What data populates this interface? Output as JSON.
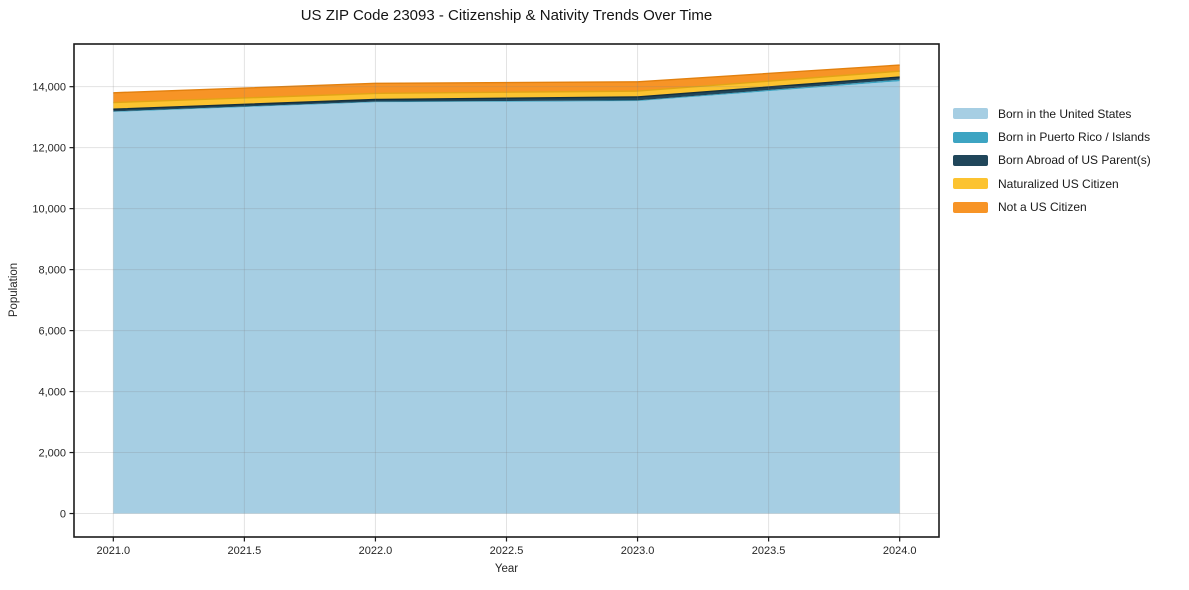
{
  "figure": {
    "background": "#ffffff"
  },
  "chart_data": {
    "type": "area",
    "stacked": true,
    "title": "US ZIP Code 23093 - Citizenship & Nativity Trends Over Time",
    "xlabel": "Year",
    "ylabel": "Population",
    "x": [
      2021,
      2022,
      2023,
      2024
    ],
    "series": [
      {
        "name": "Born in the United States",
        "color": "#a6cee3",
        "values": [
          13170,
          13490,
          13525,
          14180
        ]
      },
      {
        "name": "Born in Puerto Rico / Islands",
        "color": "#3da4c2",
        "values": [
          20,
          20,
          25,
          50
        ]
      },
      {
        "name": "Born Abroad of US Parent(s)",
        "color": "#20465a",
        "edge": "#152f3d",
        "values": [
          70,
          70,
          115,
          85
        ]
      },
      {
        "name": "Naturalized US Citizen",
        "color": "#fcc330",
        "edge": "#e2a416",
        "values": [
          220,
          200,
          190,
          195
        ]
      },
      {
        "name": "Not a US Citizen",
        "color": "#f79426",
        "edge": "#e2800e",
        "values": [
          320,
          330,
          305,
          200
        ]
      }
    ],
    "x_ticks": [
      {
        "v": 2021.0,
        "label": "2021.0"
      },
      {
        "v": 2021.5,
        "label": "2021.5"
      },
      {
        "v": 2022.0,
        "label": "2022.0"
      },
      {
        "v": 2022.5,
        "label": "2022.5"
      },
      {
        "v": 2023.0,
        "label": "2023.0"
      },
      {
        "v": 2023.5,
        "label": "2023.5"
      },
      {
        "v": 2024.0,
        "label": "2024.0"
      }
    ],
    "y_ticks": [
      {
        "v": 0,
        "label": "0"
      },
      {
        "v": 2000,
        "label": "2,000"
      },
      {
        "v": 4000,
        "label": "4,000"
      },
      {
        "v": 6000,
        "label": "6,000"
      },
      {
        "v": 8000,
        "label": "8,000"
      },
      {
        "v": 10000,
        "label": "10,000"
      },
      {
        "v": 12000,
        "label": "12,000"
      },
      {
        "v": 14000,
        "label": "14,000"
      }
    ],
    "xlim": [
      2020.85,
      2024.15
    ],
    "ylim": [
      -770,
      15400
    ],
    "grid": true,
    "legend_position": "right-outside"
  },
  "colors": {
    "grid": "#808080",
    "spine": "#1a1a1a",
    "tick_text": "#262626",
    "background": "#ffffff"
  }
}
